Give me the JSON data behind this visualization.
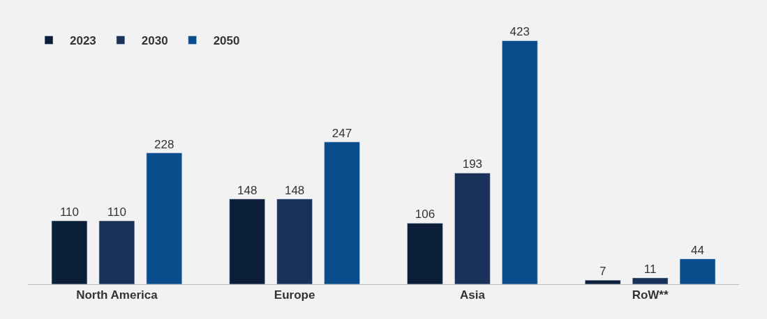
{
  "chart_data": {
    "type": "bar",
    "categories": [
      "North America",
      "Europe",
      "Asia",
      "RoW**"
    ],
    "series": [
      {
        "name": "2023",
        "color": "#0b1f3a",
        "values": [
          110,
          148,
          106,
          7
        ]
      },
      {
        "name": "2030",
        "color": "#1a3159",
        "values": [
          110,
          148,
          193,
          11
        ]
      },
      {
        "name": "2050",
        "color": "#0a4d8c",
        "values": [
          228,
          247,
          423,
          44
        ]
      }
    ],
    "data_labels": true,
    "legend": "top left"
  }
}
